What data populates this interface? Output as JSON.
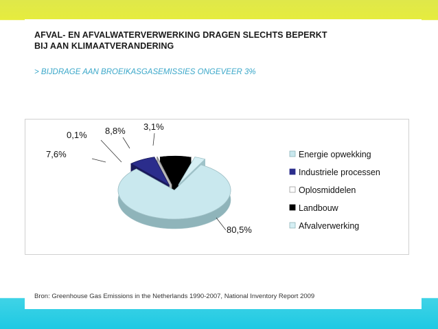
{
  "header": {
    "title_line1": "AFVAL- EN AFVALWATERVERWERKING DRAGEN SLECHTS BEPERKT",
    "title_line2": "BIJ AAN KLIMAATVERANDERING",
    "subtitle": "> BIJDRAGE AAN BROEIKASGASEMISSIES ONGEVEER 3%"
  },
  "source": "Bron: Greenhouse Gas Emissions in the Netherlands 1990-2007, National Inventory Report 2009",
  "chart_data": {
    "type": "pie",
    "title": "",
    "legend_position": "right",
    "slices": [
      {
        "name": "Energie opwekking",
        "value": 80.5,
        "label": "80,5%",
        "color": "#c9e8ee"
      },
      {
        "name": "Industriele processen",
        "value": 7.6,
        "label": "7,6%",
        "color": "#2b2d8c"
      },
      {
        "name": "Oplosmiddelen",
        "value": 0.1,
        "label": "0,1%",
        "color": "#ffffff"
      },
      {
        "name": "Landbouw",
        "value": 8.8,
        "label": "8,8%",
        "color": "#000000"
      },
      {
        "name": "Afvalverwerking",
        "value": 3.1,
        "label": "3,1%",
        "color": "#d6eff4"
      }
    ]
  }
}
